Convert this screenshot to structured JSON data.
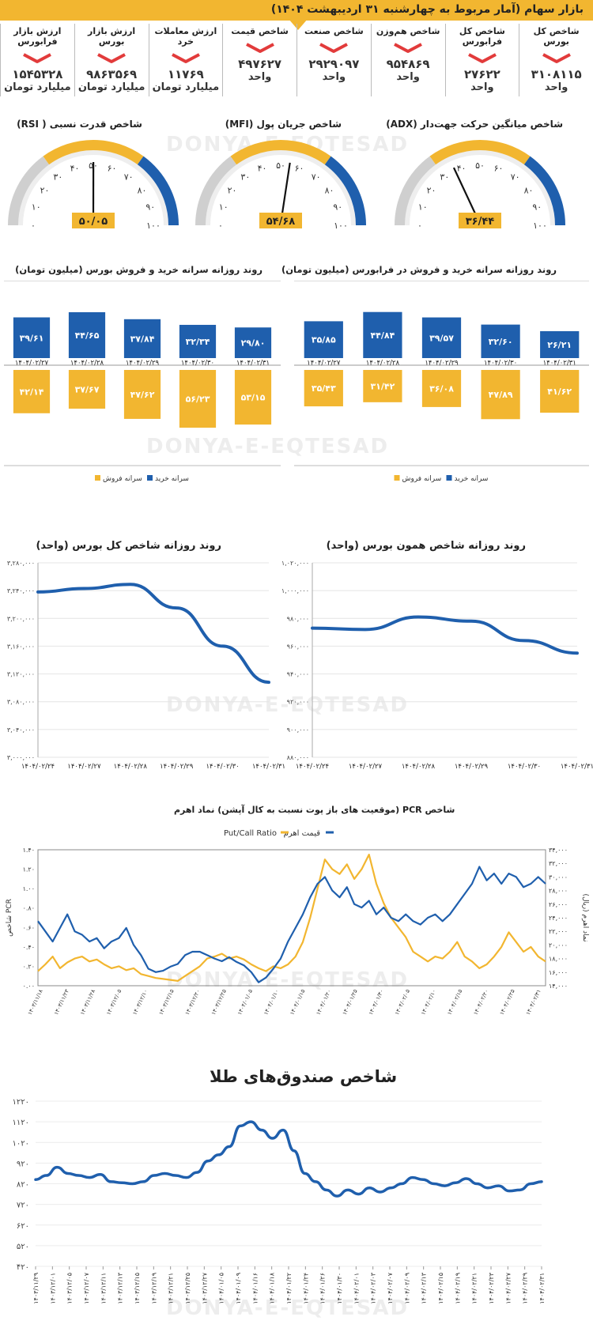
{
  "banner": {
    "title": "بازار سهام (آمار مربوط به چهارشنبه ۳۱ اردیبهشت ۱۴۰۴)"
  },
  "stats": [
    {
      "title": "شاخص کل بورس",
      "value": "۳۱۰۸۱۱۵",
      "unit": "واحد",
      "trend": "down"
    },
    {
      "title": "شاخص کل فرابورس",
      "value": "۲۷۶۲۲",
      "unit": "واحد",
      "trend": "down"
    },
    {
      "title": "شاخص هم‌وزن",
      "value": "۹۵۴۸۶۹",
      "unit": "واحد",
      "trend": "down"
    },
    {
      "title": "شاخص صنعت",
      "value": "۲۹۲۹۰۹۷",
      "unit": "واحد",
      "trend": "down"
    },
    {
      "title": "شاخص قیمت",
      "value": "۴۹۷۶۲۷",
      "unit": "واحد",
      "trend": "down"
    },
    {
      "title": "ارزش معاملات خرد",
      "value": "۱۱۷۶۹",
      "unit": "میلیارد تومان",
      "trend": "down"
    },
    {
      "title": "ارزش بازار بورس",
      "value": "۹۸۶۳۵۶۹",
      "unit": "میلیارد تومان",
      "trend": "down"
    },
    {
      "title": "ارزش بازار فرابورس",
      "value": "۱۵۴۵۳۲۸",
      "unit": "میلیارد تومان",
      "trend": "down"
    }
  ],
  "colors": {
    "accent_yellow": "#f2b630",
    "blue": "#1f5fad",
    "gray": "#cfcfcf",
    "red": "#e23b3b"
  },
  "gauges": [
    {
      "title": "شاخص میانگین حرکت جهت‌دار (ADX)",
      "value": 36.44,
      "value_label": "۳۶/۴۴",
      "ticks": [
        "۰",
        "۱۰",
        "۲۰",
        "۳۰",
        "۴۰",
        "۵۰",
        "۶۰",
        "۷۰",
        "۸۰",
        "۹۰",
        "۱۰۰"
      ]
    },
    {
      "title": "شاخص جریان پول (MFI)",
      "value": 54.68,
      "value_label": "۵۴/۶۸",
      "ticks": [
        "۰",
        "۱۰",
        "۲۰",
        "۳۰",
        "۴۰",
        "۵۰",
        "۶۰",
        "۷۰",
        "۸۰",
        "۹۰",
        "۱۰۰"
      ]
    },
    {
      "title": "شاخص قدرت نسبی ( RSI)",
      "value": 50.05,
      "value_label": "۵۰/۰۵",
      "ticks": [
        "۰",
        "۱۰",
        "۲۰",
        "۳۰",
        "۴۰",
        "۵۰",
        "۶۰",
        "۷۰",
        "۸۰",
        "۹۰",
        "۱۰۰"
      ]
    }
  ],
  "watermark": {
    "latin": "DONYA-E-EQTESAD",
    "persian": "دنیای اقتصاد"
  },
  "chart_data": [
    {
      "type": "bar",
      "title": "روند روزانه سرانه خرید و فروش در فرابورس (میلیون تومان)",
      "categories": [
        "۱۴۰۴/۰۲/۲۷",
        "۱۴۰۴/۰۲/۲۸",
        "۱۴۰۴/۰۲/۲۹",
        "۱۴۰۴/۰۲/۳۰",
        "۱۴۰۴/۰۲/۳۱"
      ],
      "series": [
        {
          "name": "سرانه خرید",
          "values": [
            35.85,
            44.84,
            39.57,
            32.6,
            26.21
          ],
          "labels": [
            "۳۵/۸۵",
            "۴۴/۸۴",
            "۳۹/۵۷",
            "۳۲/۶۰",
            "۲۶/۲۱"
          ]
        },
        {
          "name": "سرانه فروش",
          "values": [
            35.43,
            31.42,
            36.08,
            47.89,
            41.62
          ],
          "labels": [
            "۳۵/۴۳",
            "۳۱/۴۲",
            "۳۶/۰۸",
            "۴۷/۸۹",
            "۴۱/۶۲"
          ]
        }
      ]
    },
    {
      "type": "bar",
      "title": "روند روزانه سرانه خرید و فروش بورس (میلیون تومان)",
      "categories": [
        "۱۴۰۴/۰۲/۲۷",
        "۱۴۰۴/۰۲/۲۸",
        "۱۴۰۴/۰۲/۲۹",
        "۱۴۰۴/۰۲/۳۰",
        "۱۴۰۴/۰۲/۳۱"
      ],
      "series": [
        {
          "name": "سرانه خرید",
          "values": [
            39.61,
            44.65,
            37.84,
            32.34,
            29.8
          ],
          "labels": [
            "۳۹/۶۱",
            "۴۴/۶۵",
            "۳۷/۸۴",
            "۳۲/۳۴",
            "۲۹/۸۰"
          ]
        },
        {
          "name": "سرانه فروش",
          "values": [
            42.14,
            37.67,
            47.62,
            56.23,
            53.15
          ],
          "labels": [
            "۴۲/۱۴",
            "۳۷/۶۷",
            "۴۷/۶۲",
            "۵۶/۲۳",
            "۵۳/۱۵"
          ]
        }
      ]
    },
    {
      "type": "line",
      "title": "روند روزانه شاخص همون بورس (واحد)",
      "x": [
        "۱۴۰۴/۰۲/۲۴",
        "۱۴۰۴/۰۲/۲۷",
        "۱۴۰۴/۰۲/۲۸",
        "۱۴۰۴/۰۲/۲۹",
        "۱۴۰۴/۰۲/۳۰",
        "۱۴۰۴/۰۲/۳۱"
      ],
      "values": [
        973000,
        972000,
        981000,
        978000,
        964000,
        955000
      ],
      "ylim": [
        880000,
        1020000
      ],
      "yticks": [
        "۸۸۰,۰۰۰",
        "۹۰۰,۰۰۰",
        "۹۲۰,۰۰۰",
        "۹۴۰,۰۰۰",
        "۹۶۰,۰۰۰",
        "۹۸۰,۰۰۰",
        "۱,۰۰۰,۰۰۰",
        "۱,۰۲۰,۰۰۰"
      ]
    },
    {
      "type": "line",
      "title": "روند روزانه شاخص کل بورس (واحد)",
      "x": [
        "۱۴۰۴/۰۲/۲۴",
        "۱۴۰۴/۰۲/۲۷",
        "۱۴۰۴/۰۲/۲۸",
        "۱۴۰۴/۰۲/۲۹",
        "۱۴۰۴/۰۲/۳۰",
        "۱۴۰۴/۰۲/۳۱"
      ],
      "values": [
        3238000,
        3243000,
        3249000,
        3215000,
        3160000,
        3108000
      ],
      "ylim": [
        3000000,
        3280000
      ],
      "yticks": [
        "۳,۰۰۰,۰۰۰",
        "۳,۰۴۰,۰۰۰",
        "۳,۰۸۰,۰۰۰",
        "۳,۱۲۰,۰۰۰",
        "۳,۱۶۰,۰۰۰",
        "۳,۲۰۰,۰۰۰",
        "۳,۲۴۰,۰۰۰",
        "۳,۲۸۰,۰۰۰"
      ]
    },
    {
      "type": "line",
      "title": "شاخص PCR (موقعیت های باز پوت نسبت به کال آپشن) نماد اهرم",
      "y_left_label": "شاخص PCR",
      "y_right_label": "نماد اهرم (ریال)",
      "ylim_left": [
        0,
        1.4
      ],
      "ylim_right": [
        14000,
        34000
      ],
      "yticks_left": [
        "۰.۰۰",
        "۰.۲۰",
        "۰.۴۰",
        "۰.۶۰",
        "۰.۸۰",
        "۱.۰۰",
        "۱.۲۰",
        "۱.۴۰"
      ],
      "yticks_right": [
        "۱۴,۰۰۰",
        "۱۶,۰۰۰",
        "۱۸,۰۰۰",
        "۲۰,۰۰۰",
        "۲۲,۰۰۰",
        "۲۴,۰۰۰",
        "۲۶,۰۰۰",
        "۲۸,۰۰۰",
        "۳۰,۰۰۰",
        "۳۲,۰۰۰",
        "۳۴,۰۰۰"
      ],
      "x_ticks": [
        "۱۴۰۳/۱۱/۱۸",
        "۱۴۰۳/۱۱/۲۳",
        "۱۴۰۳/۱۱/۲۸",
        "۱۴۰۳/۱۲/۰۵",
        "۱۴۰۳/۱۲/۱۰",
        "۱۴۰۳/۱۲/۱۵",
        "۱۴۰۳/۱۲/۲۰",
        "۱۴۰۳/۱۲/۲۵",
        "۱۴۰۴/۰۱/۰۵",
        "۱۴۰۴/۰۱/۱۰",
        "۱۴۰۴/۰۱/۱۵",
        "۱۴۰۴/۰۱/۲۰",
        "۱۴۰۴/۰۱/۲۵",
        "۱۴۰۴/۰۱/۳۰",
        "۱۴۰۴/۰۲/۰۵",
        "۱۴۰۴/۰۲/۱۰",
        "۱۴۰۴/۰۲/۱۵",
        "۱۴۰۴/۰۲/۲۰",
        "۱۴۰۴/۰۲/۲۵",
        "۱۴۰۴/۰۲/۳۱"
      ],
      "series": [
        {
          "name": "Put/Call Ratio",
          "axis": "left",
          "values": [
            0.15,
            0.22,
            0.3,
            0.18,
            0.24,
            0.28,
            0.3,
            0.25,
            0.27,
            0.22,
            0.18,
            0.2,
            0.16,
            0.18,
            0.12,
            0.1,
            0.08,
            0.07,
            0.06,
            0.05,
            0.1,
            0.15,
            0.2,
            0.28,
            0.3,
            0.33,
            0.28,
            0.3,
            0.27,
            0.22,
            0.18,
            0.15,
            0.2,
            0.18,
            0.22,
            0.3,
            0.45,
            0.7,
            1.0,
            1.3,
            1.2,
            1.15,
            1.25,
            1.1,
            1.2,
            1.35,
            1.05,
            0.85,
            0.7,
            0.6,
            0.5,
            0.35,
            0.3,
            0.25,
            0.3,
            0.28,
            0.35,
            0.45,
            0.3,
            0.25,
            0.18,
            0.22,
            0.3,
            0.4,
            0.55,
            0.45,
            0.35,
            0.4,
            0.3,
            0.25
          ]
        },
        {
          "name": "قیمت اهرم",
          "axis": "right",
          "values": [
            23500,
            22000,
            20500,
            22500,
            24500,
            22000,
            21500,
            20500,
            21000,
            19500,
            20500,
            21000,
            22500,
            20000,
            18500,
            16500,
            16000,
            16200,
            16800,
            17200,
            18500,
            19000,
            19000,
            18500,
            18000,
            17600,
            18200,
            17500,
            17000,
            16000,
            14500,
            15200,
            16500,
            18000,
            20500,
            22500,
            24500,
            27000,
            29000,
            30000,
            28000,
            27000,
            28500,
            26000,
            25500,
            26500,
            24500,
            25500,
            24000,
            23500,
            24500,
            23500,
            23000,
            24000,
            24500,
            23500,
            24500,
            26000,
            27500,
            29000,
            31500,
            29500,
            30500,
            29000,
            30500,
            30000,
            28500,
            29000,
            30000,
            29000
          ]
        }
      ]
    },
    {
      "type": "line",
      "title": "شاخص صندوق‌های طلا",
      "ylim": [
        420,
        1220
      ],
      "yticks": [
        "۴۲۰",
        "۵۲۰",
        "۶۲۰",
        "۷۲۰",
        "۸۲۰",
        "۹۲۰",
        "۱۰۲۰",
        "۱۱۲۰",
        "۱۲۲۰"
      ],
      "x_ticks": [
        "۱۴۰۳/۱۱/۲۹",
        "۱۴۰۳/۱۲/۰۱",
        "۱۴۰۳/۱۲/۰۵",
        "۱۴۰۳/۱۲/۰۷",
        "۱۴۰۳/۱۲/۱۱",
        "۱۴۰۳/۱۲/۱۳",
        "۱۴۰۳/۱۲/۱۵",
        "۱۴۰۳/۱۲/۱۹",
        "۱۴۰۳/۱۲/۲۱",
        "۱۴۰۳/۱۲/۲۵",
        "۱۴۰۳/۱۲/۲۷",
        "۱۴۰۴/۰۱/۰۵",
        "۱۴۰۴/۰۱/۰۹",
        "۱۴۰۴/۰۱/۱۶",
        "۱۴۰۴/۰۱/۱۸",
        "۱۴۰۴/۰۱/۲۲",
        "۱۴۰۴/۰۱/۲۴",
        "۱۴۰۴/۰۱/۲۶",
        "۱۴۰۴/۰۱/۳۰",
        "۱۴۰۴/۰۲/۰۱",
        "۱۴۰۴/۰۲/۰۳",
        "۱۴۰۴/۰۲/۰۷",
        "۱۴۰۴/۰۲/۰۹",
        "۱۴۰۴/۰۲/۱۳",
        "۱۴۰۴/۰۲/۱۵",
        "۱۴۰۴/۰۲/۱۹",
        "۱۴۰۴/۰۲/۲۱",
        "۱۴۰۴/۰۲/۲۳",
        "۱۴۰۴/۰۲/۲۷",
        "۱۴۰۴/۰۲/۲۹",
        "۱۴۰۴/۰۲/۳۱"
      ],
      "values": [
        840,
        860,
        900,
        870,
        860,
        850,
        865,
        830,
        825,
        820,
        830,
        860,
        870,
        860,
        850,
        875,
        930,
        960,
        1000,
        1100,
        1120,
        1080,
        1040,
        1080,
        980,
        870,
        830,
        790,
        760,
        790,
        770,
        800,
        780,
        800,
        820,
        850,
        840,
        820,
        810,
        825,
        845,
        820,
        800,
        810,
        785,
        790,
        820,
        830
      ]
    }
  ],
  "legends": {
    "buy": "سرانه خرید",
    "sell": "سرانه فروش",
    "pcr": "Put/Call Ratio",
    "ahrom": "قیمت اهرم"
  }
}
